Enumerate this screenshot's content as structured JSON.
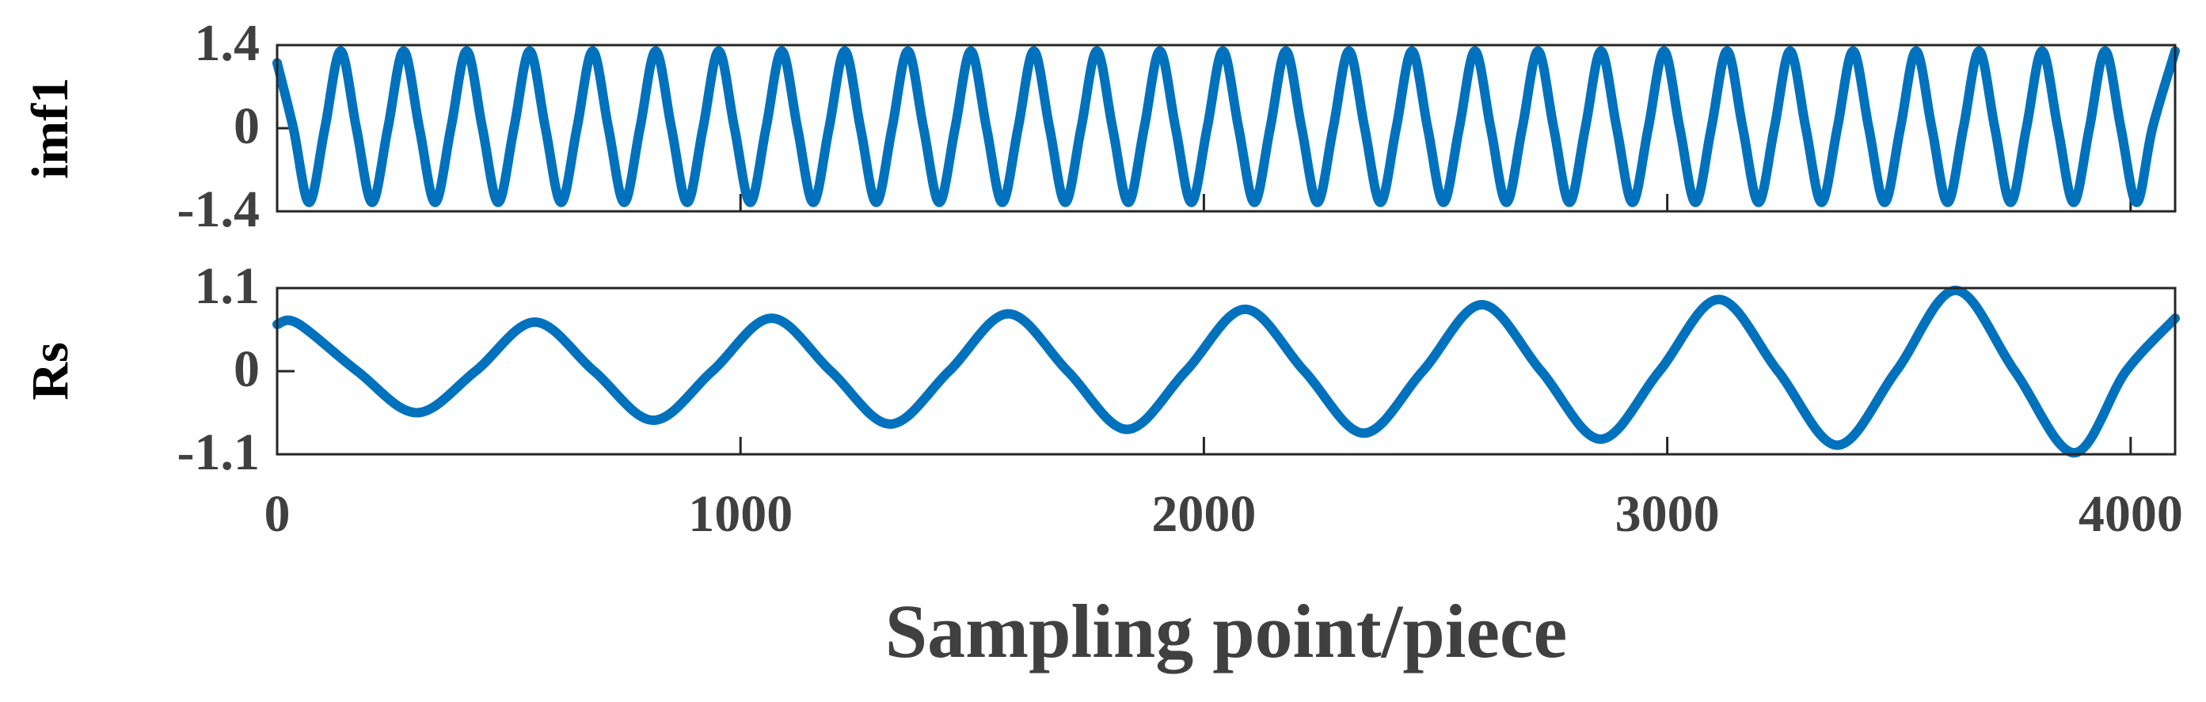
{
  "chart_data": [
    {
      "type": "line",
      "ylabel": "imf1",
      "x": [
        0,
        35,
        69,
        103,
        137,
        171,
        205,
        239,
        273,
        307,
        341,
        375,
        409,
        443,
        477,
        511,
        545,
        579,
        613,
        647,
        681,
        715,
        749,
        783,
        817,
        851,
        885,
        919,
        953,
        987,
        1021,
        1055,
        1089,
        1123,
        1157,
        1191,
        1225,
        1259,
        1293,
        1327,
        1361,
        1395,
        1429,
        1463,
        1497,
        1531,
        1565,
        1599,
        1633,
        1667,
        1701,
        1735,
        1769,
        1803,
        1837,
        1871,
        1905,
        1939,
        1973,
        2007,
        2041,
        2075,
        2109,
        2143,
        2177,
        2211,
        2245,
        2279,
        2313,
        2347,
        2381,
        2415,
        2449,
        2483,
        2517,
        2551,
        2585,
        2619,
        2653,
        2687,
        2721,
        2755,
        2789,
        2823,
        2857,
        2891,
        2925,
        2959,
        2993,
        3027,
        3061,
        3095,
        3129,
        3163,
        3197,
        3231,
        3265,
        3299,
        3333,
        3367,
        3401,
        3435,
        3469,
        3503,
        3537,
        3571,
        3605,
        3639,
        3673,
        3707,
        3741,
        3775,
        3809,
        3843,
        3877,
        3911,
        3945,
        3979,
        4013,
        4047,
        4096
      ],
      "series": [
        {
          "color": "#0072bd",
          "values": [
            1.1,
            0,
            -1.25,
            0,
            1.3,
            0,
            -1.25,
            0,
            1.3,
            0,
            -1.25,
            0,
            1.3,
            0,
            -1.25,
            0,
            1.3,
            0,
            -1.25,
            0,
            1.3,
            0,
            -1.25,
            0,
            1.3,
            0,
            -1.25,
            0,
            1.3,
            0,
            -1.25,
            0,
            1.3,
            0,
            -1.25,
            0,
            1.3,
            0,
            -1.25,
            0,
            1.3,
            0,
            -1.25,
            0,
            1.3,
            0,
            -1.25,
            0,
            1.3,
            0,
            -1.25,
            0,
            1.3,
            0,
            -1.25,
            0,
            1.3,
            0,
            -1.25,
            0,
            1.3,
            0,
            -1.25,
            0,
            1.3,
            0,
            -1.25,
            0,
            1.3,
            0,
            -1.25,
            0,
            1.3,
            0,
            -1.25,
            0,
            1.3,
            0,
            -1.25,
            0,
            1.3,
            0,
            -1.25,
            0,
            1.3,
            0,
            -1.25,
            0,
            1.3,
            0,
            -1.25,
            0,
            1.3,
            0,
            -1.25,
            0,
            1.3,
            0,
            -1.25,
            0,
            1.3,
            0,
            -1.25,
            0,
            1.3,
            0,
            -1.25,
            0,
            1.3,
            0,
            -1.25,
            0,
            1.3,
            0,
            -1.25,
            0,
            1.3,
            0,
            -1.25,
            0,
            1.3
          ]
        }
      ],
      "xlim": [
        0,
        4096
      ],
      "ylim": [
        -1.4,
        1.4
      ],
      "yticks": [
        -1.4,
        0,
        1.4
      ]
    },
    {
      "type": "line",
      "ylabel": "Rs",
      "xlabel": "Sampling point/piece",
      "x": [
        0,
        45,
        173,
        301,
        428,
        556,
        684,
        812,
        939,
        1067,
        1195,
        1323,
        1450,
        1578,
        1706,
        1834,
        1961,
        2089,
        2217,
        2345,
        2472,
        2600,
        2728,
        2856,
        2983,
        3111,
        3239,
        3367,
        3494,
        3622,
        3750,
        3878,
        3990,
        4096
      ],
      "series": [
        {
          "color": "#0072bd",
          "values": [
            0.62,
            0.63,
            0,
            -0.55,
            0,
            0.65,
            0,
            -0.65,
            0,
            0.7,
            0,
            -0.7,
            0,
            0.76,
            0,
            -0.77,
            0,
            0.82,
            0,
            -0.82,
            0,
            0.88,
            0,
            -0.9,
            0,
            0.95,
            0,
            -0.98,
            0,
            1.07,
            0,
            -1.08,
            0,
            0.7
          ]
        }
      ],
      "xlim": [
        0,
        4096
      ],
      "ylim": [
        -1.1,
        1.1
      ],
      "yticks": [
        -1.1,
        0,
        1.1
      ],
      "xticks": [
        0,
        1000,
        2000,
        3000,
        4000
      ]
    }
  ]
}
